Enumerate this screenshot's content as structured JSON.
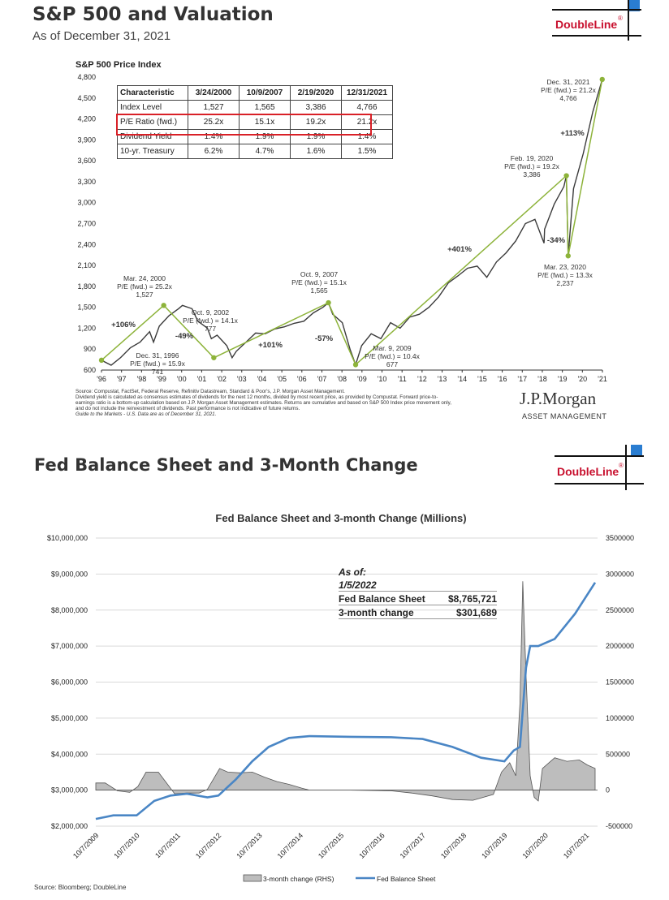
{
  "header1": {
    "title": "S&P 500 and Valuation",
    "subtitle": "As of December 31, 2021"
  },
  "logo": {
    "text": "DoubleLine",
    "mark": "®"
  },
  "header2": {
    "title": "Fed Balance Sheet and 3-Month Change"
  },
  "colors": {
    "sp_line": "#3a3a3a",
    "trend": "#8db33a",
    "highlight": "#d92027",
    "fed_line": "#4a86c5",
    "area": "#bdbdbd",
    "brand_red": "#c8102e",
    "brand_blue": "#2a7dd1"
  },
  "chart_data": [
    {
      "type": "line",
      "title": "S&P 500 Price Index",
      "ylim": [
        600,
        4800
      ],
      "y_ticks": [
        "4,800",
        "4,500",
        "4,200",
        "3,900",
        "3,600",
        "3,300",
        "3,000",
        "2,700",
        "2,400",
        "2,100",
        "1,800",
        "1,500",
        "1,200",
        "900",
        "600"
      ],
      "x_ticks": [
        "'96",
        "'97",
        "'98",
        "'99",
        "'00",
        "'01",
        "'02",
        "'03",
        "'04",
        "'05",
        "'06",
        "'07",
        "'08",
        "'09",
        "'10",
        "'11",
        "'12",
        "'13",
        "'14",
        "'15",
        "'16",
        "'17",
        "'18",
        "'19",
        "'20",
        "'21"
      ],
      "series": [
        {
          "x": [
            1996.0,
            1996.5,
            1997.0,
            1997.5,
            1998.0,
            1998.5,
            1998.7,
            1999.0,
            1999.5,
            2000.0,
            2000.2,
            2000.7,
            2001.0,
            2001.5,
            2001.7,
            2002.0,
            2002.5,
            2002.78,
            2003.0,
            2003.5,
            2004.0,
            2004.5,
            2005.0,
            2005.5,
            2006.0,
            2006.5,
            2007.0,
            2007.5,
            2007.78,
            2008.0,
            2008.5,
            2008.9,
            2009.19,
            2009.5,
            2010.0,
            2010.5,
            2011.0,
            2011.5,
            2012.0,
            2012.5,
            2013.0,
            2013.5,
            2014.0,
            2014.5,
            2015.0,
            2015.5,
            2016.0,
            2016.5,
            2017.0,
            2017.5,
            2018.0,
            2018.5,
            2018.97,
            2019.0,
            2019.5,
            2020.0,
            2020.13,
            2020.22,
            2020.5,
            2021.0,
            2021.5,
            2021.99
          ],
          "values": [
            741,
            670,
            780,
            920,
            1000,
            1150,
            1000,
            1230,
            1380,
            1480,
            1527,
            1480,
            1300,
            1200,
            1050,
            1100,
            950,
            777,
            870,
            1000,
            1130,
            1120,
            1190,
            1220,
            1270,
            1300,
            1420,
            1500,
            1565,
            1400,
            1280,
            900,
            677,
            950,
            1120,
            1050,
            1280,
            1200,
            1360,
            1400,
            1500,
            1650,
            1850,
            1950,
            2060,
            2090,
            1930,
            2150,
            2280,
            2450,
            2700,
            2760,
            2420,
            2620,
            2980,
            3230,
            3386,
            2237,
            3200,
            3700,
            4300,
            4766
          ]
        }
      ],
      "trend_x": [
        1996.0,
        1999.23,
        2001.83,
        2007.78,
        2009.19,
        2020.13,
        2020.22,
        2021.99
      ],
      "trend_values": [
        741,
        1527,
        777,
        1565,
        677,
        3386,
        2237,
        4766
      ],
      "table": {
        "headers": [
          "Characteristic",
          "3/24/2000",
          "10/9/2007",
          "2/19/2020",
          "12/31/2021"
        ],
        "rows": [
          [
            "Index Level",
            "1,527",
            "1,565",
            "3,386",
            "4,766"
          ],
          [
            "P/E Ratio (fwd.)",
            "25.2x",
            "15.1x",
            "19.2x",
            "21.2x"
          ],
          [
            "Dividend Yield",
            "1.4%",
            "1.9%",
            "1.9%",
            "1.4%"
          ],
          [
            "10-yr. Treasury",
            "6.2%",
            "4.7%",
            "1.6%",
            "1.5%"
          ]
        ]
      },
      "annotations": {
        "mar2000": [
          "Mar. 24, 2000",
          "P/E (fwd.) = 25.2x",
          "1,527"
        ],
        "dec1996": [
          "Dec. 31, 1996",
          "P/E (fwd.) = 15.9x",
          "741"
        ],
        "oct2002": [
          "Oct. 9, 2002",
          "P/E (fwd.) = 14.1x",
          "777"
        ],
        "oct2007": [
          "Oct. 9, 2007",
          "P/E (fwd.) = 15.1x",
          "1,565"
        ],
        "mar2009": [
          "Mar. 9, 2009",
          "P/E (fwd.) = 10.4x",
          "677"
        ],
        "feb2020": [
          "Feb. 19, 2020",
          "P/E (fwd.) = 19.2x",
          "3,386"
        ],
        "mar2020": [
          "Mar. 23, 2020",
          "P/E (fwd.) = 13.3x",
          "2,237"
        ],
        "dec2021": [
          "Dec. 31, 2021",
          "P/E (fwd.) = 21.2x",
          "4,766"
        ],
        "pct": [
          "+106%",
          "-49%",
          "+101%",
          "-57%",
          "+401%",
          "-34%",
          "+113%"
        ]
      },
      "source": [
        "Source: Compustat, FactSet, Federal Reserve, Refinitiv Datastream, Standard & Poor's, J.P. Morgan Asset Management.",
        "Dividend yield is calculated as consensus estimates of dividends for the next 12 months, divided by most recent price, as provided by Compustat. Forward price-to-",
        "earnings ratio is a bottom-up calculation based on J.P. Morgan Asset Management estimates. Returns are cumulative and based on S&P 500 Index price movement only,",
        "and do not include the reinvestment of dividends. Past performance is not indicative of future returns.",
        "Guide to the Markets - U.S. Data are as of December 31, 2021."
      ],
      "brand": {
        "name": "J.P.Morgan",
        "sub": "ASSET MANAGEMENT"
      }
    },
    {
      "type": "area",
      "title": "Fed Balance Sheet and 3-month Change (Millions)",
      "ylim": [
        2000000,
        10000000
      ],
      "y2lim": [
        -500000,
        3500000
      ],
      "y_ticks": [
        "$10,000,000",
        "$9,000,000",
        "$8,000,000",
        "$7,000,000",
        "$6,000,000",
        "$5,000,000",
        "$4,000,000",
        "$3,000,000",
        "$2,000,000"
      ],
      "y2_ticks": [
        "3500000",
        "3000000",
        "2500000",
        "2000000",
        "1500000",
        "1000000",
        "500000",
        "0",
        "-500000"
      ],
      "x_ticks": [
        "10/7/2009",
        "10/7/2010",
        "10/7/2011",
        "10/7/2012",
        "10/7/2013",
        "10/7/2014",
        "10/7/2015",
        "10/7/2016",
        "10/7/2017",
        "10/7/2018",
        "10/7/2019",
        "10/7/2020",
        "10/7/2021"
      ],
      "series": [
        {
          "name": "Fed Balance Sheet",
          "x": [
            2009.77,
            2010.2,
            2010.77,
            2011.2,
            2011.6,
            2012.0,
            2012.5,
            2012.77,
            2013.2,
            2013.6,
            2014.0,
            2014.5,
            2015.0,
            2016.0,
            2017.0,
            2017.77,
            2018.5,
            2019.2,
            2019.77,
            2020.0,
            2020.15,
            2020.3,
            2020.4,
            2020.6,
            2021.0,
            2021.5,
            2021.99
          ],
          "values": [
            2200000,
            2300000,
            2300000,
            2700000,
            2850000,
            2900000,
            2800000,
            2850000,
            3300000,
            3800000,
            4200000,
            4450000,
            4500000,
            4480000,
            4470000,
            4420000,
            4200000,
            3900000,
            3800000,
            4100000,
            4200000,
            6400000,
            7000000,
            7000000,
            7200000,
            7900000,
            8765721
          ]
        },
        {
          "name": "3-month change (RHS)",
          "x": [
            2009.77,
            2010.0,
            2010.3,
            2010.6,
            2010.8,
            2011.0,
            2011.3,
            2011.5,
            2011.7,
            2012.0,
            2012.3,
            2012.5,
            2012.8,
            2013.0,
            2013.3,
            2013.6,
            2013.9,
            2014.2,
            2014.5,
            2014.8,
            2015.0,
            2016.0,
            2017.0,
            2017.5,
            2018.0,
            2018.5,
            2019.0,
            2019.5,
            2019.7,
            2019.9,
            2020.05,
            2020.15,
            2020.22,
            2020.3,
            2020.4,
            2020.5,
            2020.6,
            2020.7,
            2021.0,
            2021.3,
            2021.6,
            2021.8,
            2021.99
          ],
          "values": [
            100000,
            100000,
            -10000,
            -30000,
            50000,
            250000,
            250000,
            100000,
            -50000,
            -40000,
            -40000,
            10000,
            300000,
            250000,
            240000,
            250000,
            180000,
            120000,
            80000,
            30000,
            0,
            0,
            -10000,
            -40000,
            -80000,
            -130000,
            -140000,
            -60000,
            250000,
            380000,
            200000,
            1200000,
            2900000,
            1600000,
            200000,
            -100000,
            -150000,
            300000,
            450000,
            400000,
            420000,
            350000,
            301689
          ]
        }
      ],
      "box": {
        "as_of_label": "As of:",
        "date": "1/5/2022",
        "row1_label": "Fed Balance Sheet",
        "row1_value": "$8,765,721",
        "row2_label": "3-month change",
        "row2_value": "$301,689"
      },
      "legend": [
        "3-month change (RHS)",
        "Fed Balance Sheet"
      ],
      "source": "Source: Bloomberg; DoubleLine"
    }
  ]
}
